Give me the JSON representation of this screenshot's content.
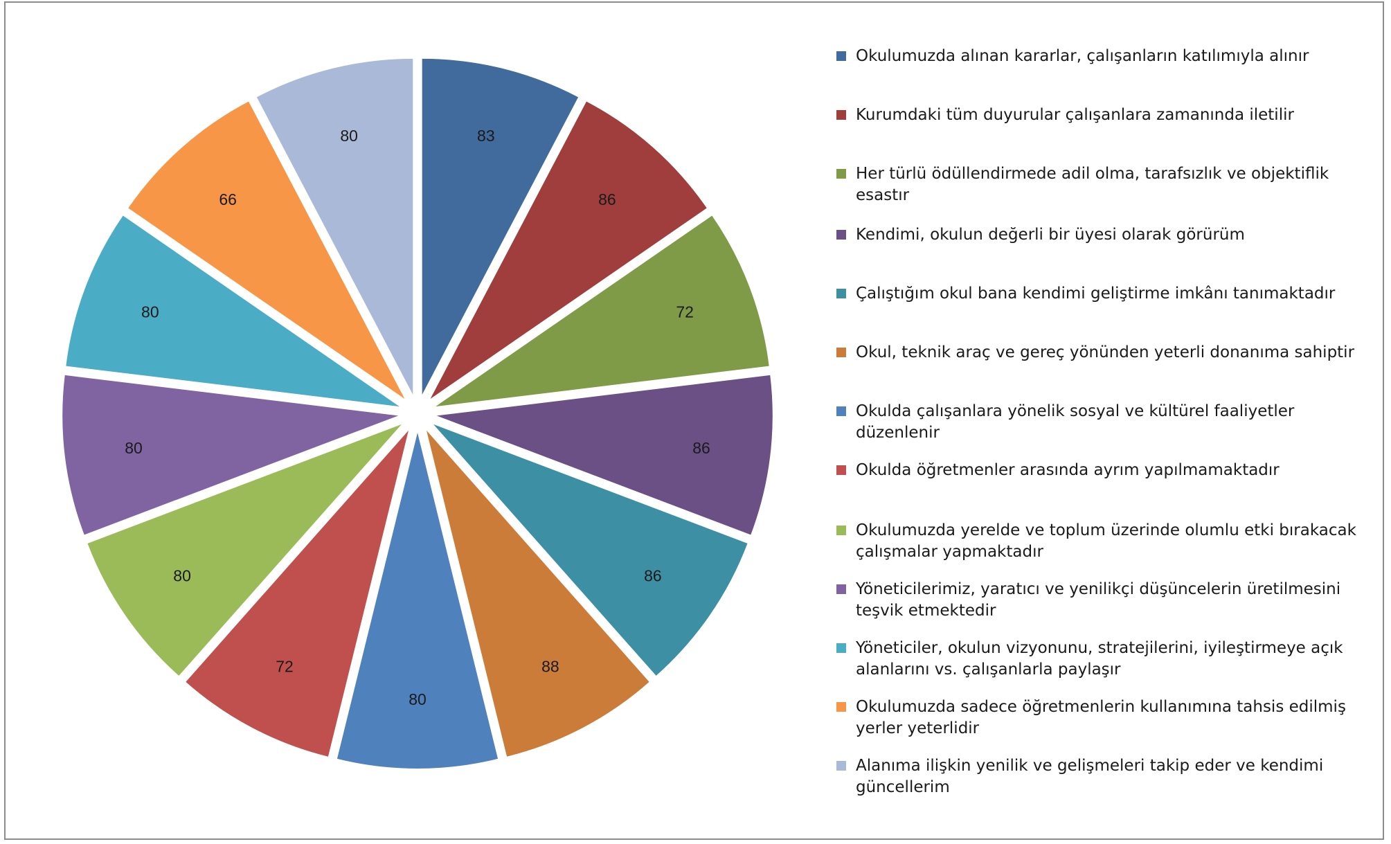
{
  "chart_data": {
    "type": "pie",
    "exploded": true,
    "legend": "right",
    "slices": [
      {
        "label": "Okulumuzda alınan kararlar, çalışanların katılımıyla alınır",
        "value": 83,
        "color": "#416A9D"
      },
      {
        "label": "Kurumdaki tüm duyurular çalışanlara zamanında iletilir",
        "value": 86,
        "color": "#9F3E3C"
      },
      {
        "label": "Her türlü ödüllendirmede adil olma, tarafsızlık ve objektiflik esastır",
        "value": 72,
        "color": "#809B47"
      },
      {
        "label": "Kendimi, okulun değerli bir üyesi olarak görürüm",
        "value": 86,
        "color": "#6A5084"
      },
      {
        "label": "Çalıştığım okul bana kendimi geliştirme imkânı tanımaktadır",
        "value": 86,
        "color": "#3D8FA4"
      },
      {
        "label": "Okul, teknik araç ve gereç yönünden yeterli donanıma sahiptir",
        "value": 88,
        "color": "#CC7C39"
      },
      {
        "label": "Okulda çalışanlara yönelik sosyal ve kültürel faaliyetler düzenlenir",
        "value": 80,
        "color": "#4F81BD"
      },
      {
        "label": "Okulda öğretmenler arasında ayrım yapılmamaktadır",
        "value": 72,
        "color": "#C0504D"
      },
      {
        "label": "Okulumuzda yerelde ve toplum üzerinde olumlu etki bırakacak çalışmalar yapmaktadır",
        "value": 80,
        "color": "#9BBB59"
      },
      {
        "label": "Yöneticilerimiz, yaratıcı ve yenilikçi düşüncelerin üretilmesini teşvik etmektedir",
        "value": 80,
        "color": "#8064A2"
      },
      {
        "label": "Yöneticiler, okulun vizyonunu, stratejilerini,  iyileştirmeye açık alanlarını vs. çalışanlarla paylaşır",
        "value": 80,
        "color": "#4BACC6"
      },
      {
        "label": "Okulumuzda sadece öğretmenlerin kullanımına tahsis edilmiş yerler yeterlidir",
        "value": 66,
        "color": "#F79646"
      },
      {
        "label": "Alanıma ilişkin yenilik ve gelişmeleri takip eder ve kendimi güncellerim",
        "value": 80,
        "color": "#AAB9D8"
      }
    ]
  }
}
